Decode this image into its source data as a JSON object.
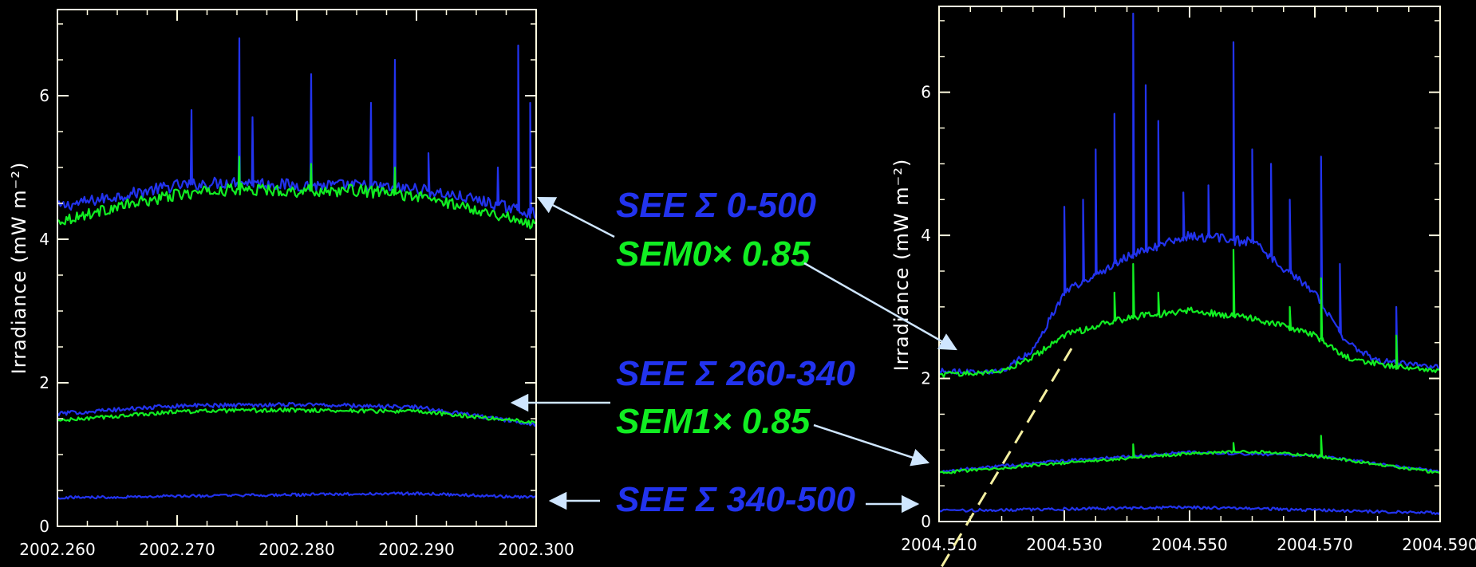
{
  "colors": {
    "background": "#000000",
    "axes": "#fffbe0",
    "see": "#2233ee",
    "sem": "#11ee22",
    "arrow": "#cfe6ff",
    "dashed": "#f5f0a0"
  },
  "labels": {
    "see_0_500": "SEE Σ 0-500",
    "sem0": "SEM0× 0.85",
    "see_260_340": "SEE Σ 260-340",
    "sem1": "SEM1× 0.85",
    "see_340_500": "SEE Σ 340-500"
  },
  "chart_data": [
    {
      "type": "line",
      "title": "",
      "xlabel": "",
      "ylabel": "Irradiance (mW m⁻²)",
      "xlim": [
        2002.26,
        2002.3
      ],
      "ylim": [
        0,
        7.2
      ],
      "xticks": [
        2002.26,
        2002.27,
        2002.28,
        2002.29,
        2002.3
      ],
      "xtick_labels": [
        "2002.260",
        "2002.270",
        "2002.280",
        "2002.290",
        "2002.300"
      ],
      "yticks": [
        0,
        2,
        4,
        6
      ],
      "ytick_labels": [
        "0",
        "2",
        "4",
        "6"
      ],
      "series": [
        {
          "group": "SEE Σ 0-500",
          "color": "see",
          "base": [
            [
              2002.26,
              4.45
            ],
            [
              2002.265,
              4.6
            ],
            [
              2002.27,
              4.75
            ],
            [
              2002.275,
              4.8
            ],
            [
              2002.28,
              4.75
            ],
            [
              2002.285,
              4.75
            ],
            [
              2002.29,
              4.7
            ],
            [
              2002.295,
              4.55
            ],
            [
              2002.3,
              4.35
            ]
          ],
          "spikes": [
            [
              2002.2712,
              5.8
            ],
            [
              2002.2752,
              6.8
            ],
            [
              2002.2763,
              5.7
            ],
            [
              2002.2812,
              6.3
            ],
            [
              2002.2862,
              5.9
            ],
            [
              2002.2882,
              6.5
            ],
            [
              2002.291,
              5.2
            ],
            [
              2002.2968,
              5.0
            ],
            [
              2002.2985,
              6.7
            ],
            [
              2002.2995,
              5.9
            ]
          ]
        },
        {
          "group": "SEM0× 0.85",
          "color": "sem",
          "base": [
            [
              2002.26,
              4.25
            ],
            [
              2002.265,
              4.45
            ],
            [
              2002.27,
              4.62
            ],
            [
              2002.275,
              4.7
            ],
            [
              2002.28,
              4.67
            ],
            [
              2002.285,
              4.68
            ],
            [
              2002.29,
              4.6
            ],
            [
              2002.295,
              4.42
            ],
            [
              2002.3,
              4.2
            ]
          ],
          "spikes": [
            [
              2002.2752,
              5.15
            ],
            [
              2002.2812,
              5.05
            ],
            [
              2002.2882,
              5.0
            ]
          ]
        },
        {
          "group": "SEE Σ 260-340",
          "color": "see",
          "base": [
            [
              2002.26,
              1.57
            ],
            [
              2002.27,
              1.68
            ],
            [
              2002.28,
              1.7
            ],
            [
              2002.29,
              1.66
            ],
            [
              2002.3,
              1.42
            ]
          ],
          "spikes": []
        },
        {
          "group": "SEM1× 0.85",
          "color": "sem",
          "base": [
            [
              2002.26,
              1.47
            ],
            [
              2002.27,
              1.6
            ],
            [
              2002.28,
              1.62
            ],
            [
              2002.29,
              1.6
            ],
            [
              2002.3,
              1.45
            ]
          ],
          "spikes": []
        },
        {
          "group": "SEE Σ 340-500",
          "color": "see",
          "base": [
            [
              2002.26,
              0.4
            ],
            [
              2002.28,
              0.44
            ],
            [
              2002.29,
              0.46
            ],
            [
              2002.3,
              0.4
            ]
          ],
          "spikes": []
        }
      ]
    },
    {
      "type": "line",
      "title": "",
      "xlabel": "",
      "ylabel": "Irradiance (mW m⁻²)",
      "xlim": [
        2004.51,
        2004.59
      ],
      "ylim": [
        0,
        7.2
      ],
      "xticks": [
        2004.51,
        2004.53,
        2004.55,
        2004.57,
        2004.59
      ],
      "xtick_labels": [
        "2004.510",
        "2004.530",
        "2004.550",
        "2004.570",
        "2004.590"
      ],
      "yticks": [
        0,
        2,
        4,
        6
      ],
      "ytick_labels": [
        "0",
        "2",
        "4",
        "6"
      ],
      "series": [
        {
          "group": "SEE Σ 0-500",
          "color": "see",
          "base": [
            [
              2004.51,
              2.1
            ],
            [
              2004.52,
              2.1
            ],
            [
              2004.525,
              2.4
            ],
            [
              2004.53,
              3.2
            ],
            [
              2004.54,
              3.7
            ],
            [
              2004.55,
              4.0
            ],
            [
              2004.56,
              3.9
            ],
            [
              2004.57,
              3.2
            ],
            [
              2004.575,
              2.5
            ],
            [
              2004.58,
              2.25
            ],
            [
              2004.59,
              2.15
            ]
          ],
          "spikes": [
            [
              2004.53,
              4.4
            ],
            [
              2004.533,
              4.5
            ],
            [
              2004.535,
              5.2
            ],
            [
              2004.538,
              5.7
            ],
            [
              2004.541,
              7.1
            ],
            [
              2004.543,
              6.1
            ],
            [
              2004.545,
              5.6
            ],
            [
              2004.549,
              4.6
            ],
            [
              2004.553,
              4.7
            ],
            [
              2004.557,
              6.7
            ],
            [
              2004.56,
              5.2
            ],
            [
              2004.563,
              5.0
            ],
            [
              2004.566,
              4.5
            ],
            [
              2004.571,
              5.1
            ],
            [
              2004.574,
              3.6
            ],
            [
              2004.583,
              3.0
            ]
          ]
        },
        {
          "group": "SEM0× 0.85",
          "color": "sem",
          "base": [
            [
              2004.51,
              2.05
            ],
            [
              2004.52,
              2.1
            ],
            [
              2004.525,
              2.3
            ],
            [
              2004.53,
              2.6
            ],
            [
              2004.54,
              2.85
            ],
            [
              2004.55,
              2.95
            ],
            [
              2004.56,
              2.85
            ],
            [
              2004.57,
              2.6
            ],
            [
              2004.575,
              2.3
            ],
            [
              2004.58,
              2.2
            ],
            [
              2004.59,
              2.1
            ]
          ],
          "spikes": [
            [
              2004.538,
              3.2
            ],
            [
              2004.541,
              3.6
            ],
            [
              2004.545,
              3.2
            ],
            [
              2004.557,
              3.8
            ],
            [
              2004.566,
              3.0
            ],
            [
              2004.571,
              3.4
            ],
            [
              2004.583,
              2.6
            ]
          ]
        },
        {
          "group": "SEE Σ 260-340",
          "color": "see",
          "base": [
            [
              2004.51,
              0.7
            ],
            [
              2004.53,
              0.85
            ],
            [
              2004.55,
              0.97
            ],
            [
              2004.57,
              0.92
            ],
            [
              2004.59,
              0.7
            ]
          ],
          "spikes": []
        },
        {
          "group": "SEM1× 0.85",
          "color": "sem",
          "base": [
            [
              2004.51,
              0.68
            ],
            [
              2004.53,
              0.82
            ],
            [
              2004.55,
              0.95
            ],
            [
              2004.56,
              0.98
            ],
            [
              2004.57,
              0.92
            ],
            [
              2004.59,
              0.68
            ]
          ],
          "spikes": [
            [
              2004.541,
              1.08
            ],
            [
              2004.557,
              1.1
            ],
            [
              2004.571,
              1.2
            ]
          ]
        },
        {
          "group": "SEE Σ 340-500",
          "color": "see",
          "base": [
            [
              2004.51,
              0.15
            ],
            [
              2004.55,
              0.2
            ],
            [
              2004.59,
              0.12
            ]
          ],
          "spikes": []
        }
      ]
    }
  ]
}
